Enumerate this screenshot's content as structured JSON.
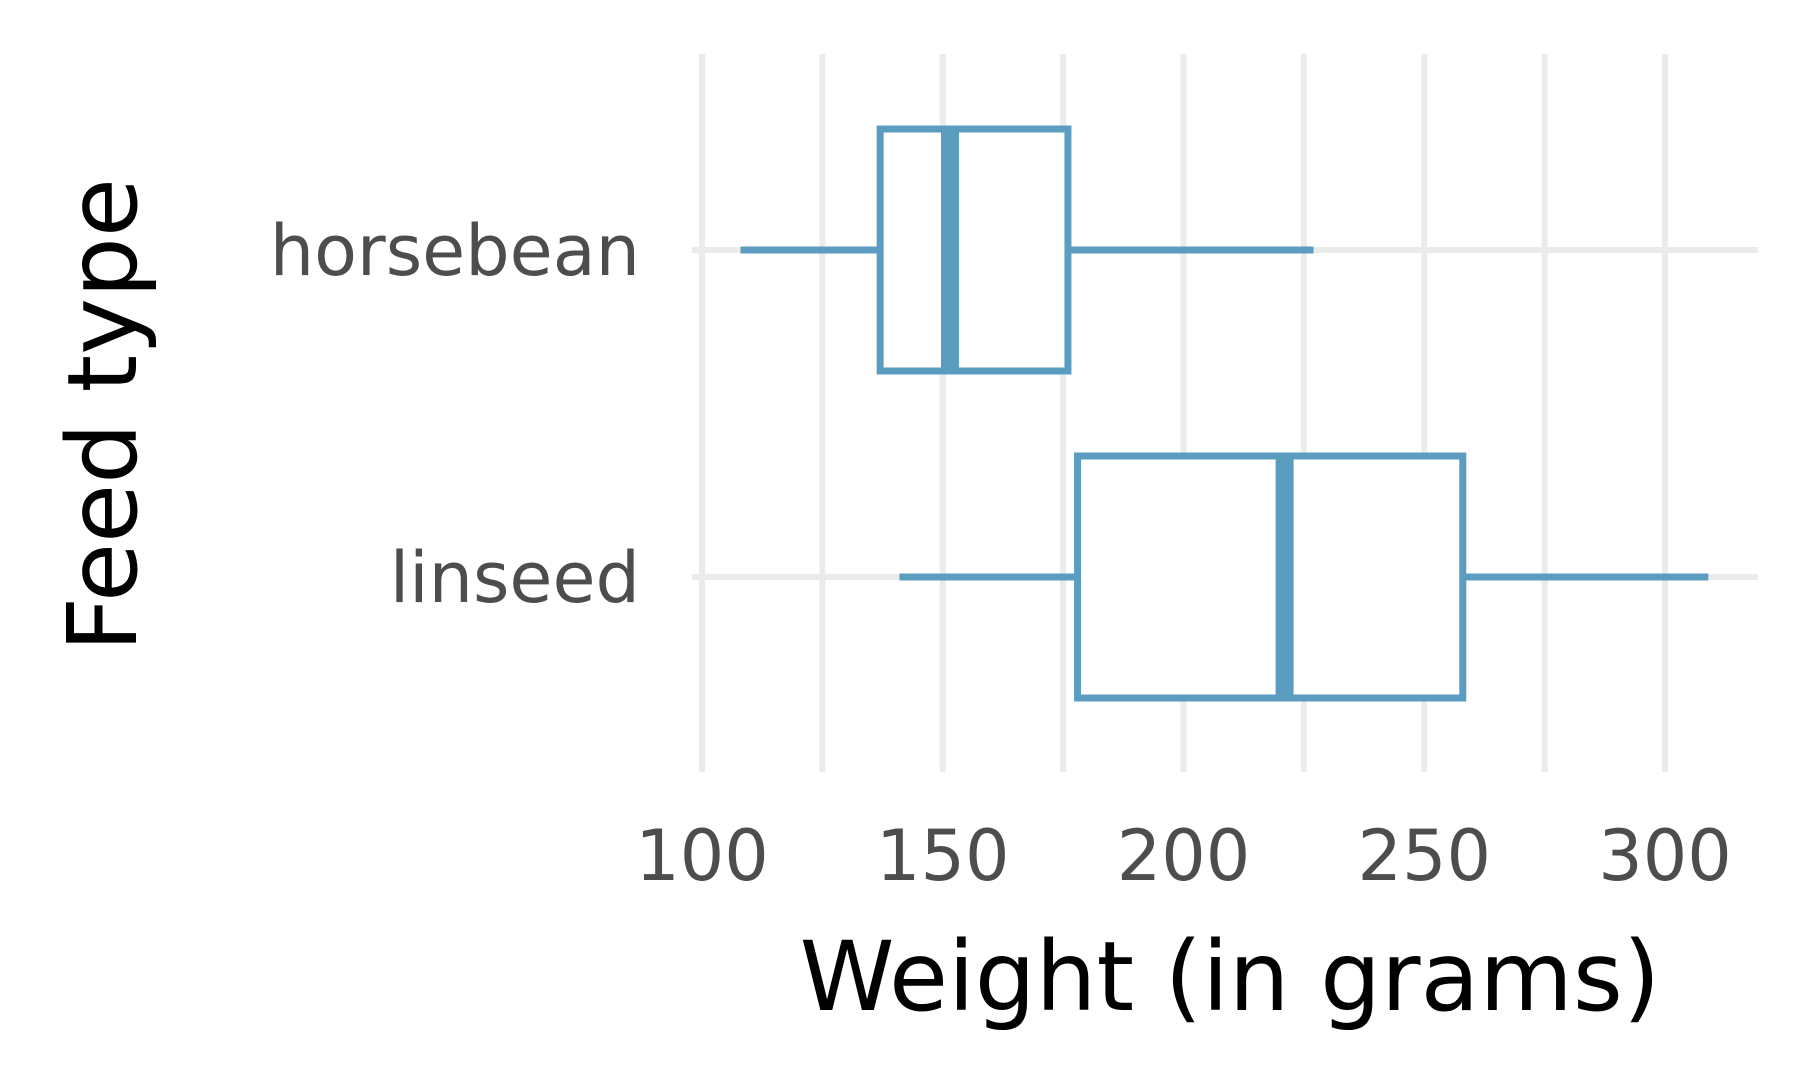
{
  "chart_data": {
    "type": "boxplot",
    "title": "",
    "xlabel": "Weight (in grams)",
    "ylabel": "Feed type",
    "xlim": [
      100,
      320
    ],
    "x_ticks": [
      100,
      150,
      200,
      250,
      300
    ],
    "x_minor_ticks": [
      125,
      175,
      225,
      275
    ],
    "grid": true,
    "legend": "none",
    "color": "#5b9dc0",
    "categories": [
      "horsebean",
      "linseed"
    ],
    "boxes": [
      {
        "label": "horsebean",
        "whisker_low": 108,
        "q1": 137,
        "median": 151.5,
        "q3": 176,
        "whisker_high": 227
      },
      {
        "label": "linseed",
        "whisker_low": 141,
        "q1": 178,
        "median": 221,
        "q3": 258,
        "whisker_high": 309
      }
    ]
  }
}
